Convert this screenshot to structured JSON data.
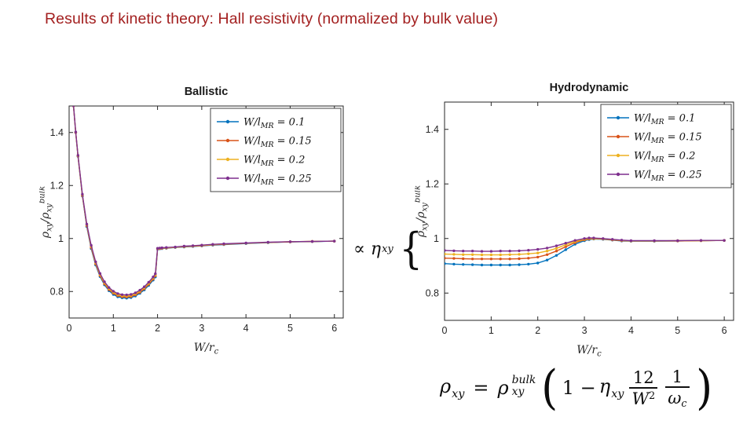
{
  "slide": {
    "title": "Results of kinetic theory: Hall resistivity (normalized by bulk value)",
    "title_color": "#A32020",
    "background": "#FFFFFF"
  },
  "annotation": {
    "propto_eta": "∝ η",
    "eta_sub": "xy",
    "brace": "{"
  },
  "equation": {
    "lhs_base": "ρ",
    "lhs_sub": "xy",
    "equals": "=",
    "rhs_base": "ρ",
    "rhs_sub": "xy",
    "rhs_sup": "bulk",
    "open_paren": "(",
    "one_minus": "1 −",
    "eta_base": "η",
    "eta_sub": "xy",
    "frac1_num": "12",
    "frac1_den_base": "W",
    "frac1_den_sup": "2",
    "frac2_num": "1",
    "frac2_den_base": "ω",
    "frac2_den_sub": "c",
    "close_paren": ")"
  },
  "chart_data": [
    {
      "type": "line",
      "name": "ballistic",
      "title": "Ballistic",
      "xlabel": "W/r_{c}",
      "ylabel": "ρ_{xy}/ρ_{xy}^{bulk}",
      "xlim": [
        0,
        6.2
      ],
      "ylim": [
        0.7,
        1.5
      ],
      "xticks": [
        0,
        1,
        2,
        3,
        4,
        5,
        6
      ],
      "yticks": [
        0.8,
        1,
        1.2,
        1.4
      ],
      "grid": false,
      "legend_position": "northeast",
      "marker": "point",
      "x": [
        0.05,
        0.1,
        0.15,
        0.2,
        0.3,
        0.4,
        0.5,
        0.6,
        0.7,
        0.8,
        0.9,
        1.0,
        1.1,
        1.2,
        1.3,
        1.4,
        1.5,
        1.6,
        1.7,
        1.8,
        1.9,
        1.95,
        2.0,
        2.05,
        2.1,
        2.2,
        2.4,
        2.6,
        2.8,
        3.0,
        3.25,
        3.5,
        4.0,
        4.5,
        5.0,
        5.5,
        6.0
      ],
      "series": [
        {
          "name": "W/l_{MR} = 0.1",
          "color": "#0072BD",
          "values": [
            1.62,
            1.5,
            1.4,
            1.31,
            1.16,
            1.045,
            0.962,
            0.9,
            0.856,
            0.825,
            0.803,
            0.789,
            0.78,
            0.776,
            0.775,
            0.777,
            0.783,
            0.793,
            0.806,
            0.823,
            0.843,
            0.855,
            0.96,
            0.961,
            0.962,
            0.963,
            0.966,
            0.968,
            0.97,
            0.972,
            0.975,
            0.977,
            0.981,
            0.984,
            0.987,
            0.988,
            0.99
          ]
        },
        {
          "name": "W/l_{MR} = 0.15",
          "color": "#D95319",
          "values": [
            1.62,
            1.5,
            1.4,
            1.311,
            1.162,
            1.048,
            0.966,
            0.904,
            0.86,
            0.829,
            0.807,
            0.793,
            0.784,
            0.78,
            0.779,
            0.781,
            0.787,
            0.797,
            0.81,
            0.827,
            0.847,
            0.859,
            0.961,
            0.962,
            0.963,
            0.964,
            0.967,
            0.969,
            0.971,
            0.973,
            0.976,
            0.978,
            0.982,
            0.985,
            0.987,
            0.989,
            0.99
          ]
        },
        {
          "name": "W/l_{MR} = 0.2",
          "color": "#EDB120",
          "values": [
            1.62,
            1.5,
            1.401,
            1.312,
            1.164,
            1.051,
            0.97,
            0.908,
            0.864,
            0.833,
            0.811,
            0.797,
            0.788,
            0.784,
            0.783,
            0.785,
            0.791,
            0.801,
            0.814,
            0.831,
            0.851,
            0.863,
            0.962,
            0.963,
            0.964,
            0.965,
            0.967,
            0.97,
            0.972,
            0.974,
            0.977,
            0.979,
            0.982,
            0.985,
            0.988,
            0.989,
            0.99
          ]
        },
        {
          "name": "W/l_{MR} = 0.25",
          "color": "#7E2F8E",
          "values": [
            1.62,
            1.501,
            1.402,
            1.314,
            1.167,
            1.054,
            0.974,
            0.912,
            0.868,
            0.837,
            0.815,
            0.801,
            0.792,
            0.788,
            0.787,
            0.789,
            0.795,
            0.805,
            0.818,
            0.835,
            0.855,
            0.867,
            0.963,
            0.964,
            0.965,
            0.966,
            0.968,
            0.971,
            0.973,
            0.975,
            0.978,
            0.98,
            0.983,
            0.986,
            0.988,
            0.989,
            0.99
          ]
        }
      ]
    },
    {
      "type": "line",
      "name": "hydrodynamic",
      "title": "Hydrodynamic",
      "xlabel": "W/r_{c}",
      "ylabel": "ρ_{xy}/ρ_{xy}^{bulk}",
      "xlim": [
        0,
        6.2
      ],
      "ylim": [
        0.7,
        1.5
      ],
      "xticks": [
        0,
        1,
        2,
        3,
        4,
        5,
        6
      ],
      "yticks": [
        0.8,
        1,
        1.2,
        1.4
      ],
      "grid": false,
      "legend_position": "northeast",
      "marker": "point",
      "x": [
        0,
        0.2,
        0.4,
        0.6,
        0.8,
        1.0,
        1.2,
        1.4,
        1.6,
        1.8,
        2.0,
        2.2,
        2.4,
        2.6,
        2.8,
        3.0,
        3.1,
        3.2,
        3.4,
        3.6,
        3.8,
        4.0,
        4.5,
        5.0,
        5.5,
        6.0
      ],
      "series": [
        {
          "name": "W/l_{MR} = 0.1",
          "color": "#0072BD",
          "values": [
            0.908,
            0.906,
            0.905,
            0.904,
            0.903,
            0.903,
            0.903,
            0.903,
            0.904,
            0.906,
            0.91,
            0.921,
            0.938,
            0.959,
            0.979,
            0.992,
            0.996,
            0.998,
            0.997,
            0.994,
            0.991,
            0.99,
            0.99,
            0.991,
            0.992,
            0.993
          ]
        },
        {
          "name": "W/l_{MR} = 0.15",
          "color": "#D95319",
          "values": [
            0.928,
            0.927,
            0.926,
            0.925,
            0.925,
            0.925,
            0.925,
            0.925,
            0.926,
            0.928,
            0.932,
            0.941,
            0.954,
            0.97,
            0.985,
            0.995,
            0.998,
            0.999,
            0.998,
            0.995,
            0.992,
            0.991,
            0.991,
            0.991,
            0.992,
            0.993
          ]
        },
        {
          "name": "W/l_{MR} = 0.2",
          "color": "#EDB120",
          "values": [
            0.943,
            0.942,
            0.941,
            0.941,
            0.94,
            0.94,
            0.94,
            0.941,
            0.942,
            0.944,
            0.947,
            0.954,
            0.964,
            0.977,
            0.989,
            0.997,
            1.0,
            1.0,
            0.999,
            0.996,
            0.993,
            0.991,
            0.991,
            0.992,
            0.992,
            0.993
          ]
        },
        {
          "name": "W/l_{MR} = 0.25",
          "color": "#7E2F8E",
          "values": [
            0.956,
            0.955,
            0.954,
            0.954,
            0.953,
            0.953,
            0.954,
            0.954,
            0.955,
            0.957,
            0.96,
            0.965,
            0.973,
            0.983,
            0.993,
            1.0,
            1.002,
            1.002,
            1.0,
            0.997,
            0.994,
            0.992,
            0.992,
            0.992,
            0.993,
            0.993
          ]
        }
      ]
    }
  ]
}
